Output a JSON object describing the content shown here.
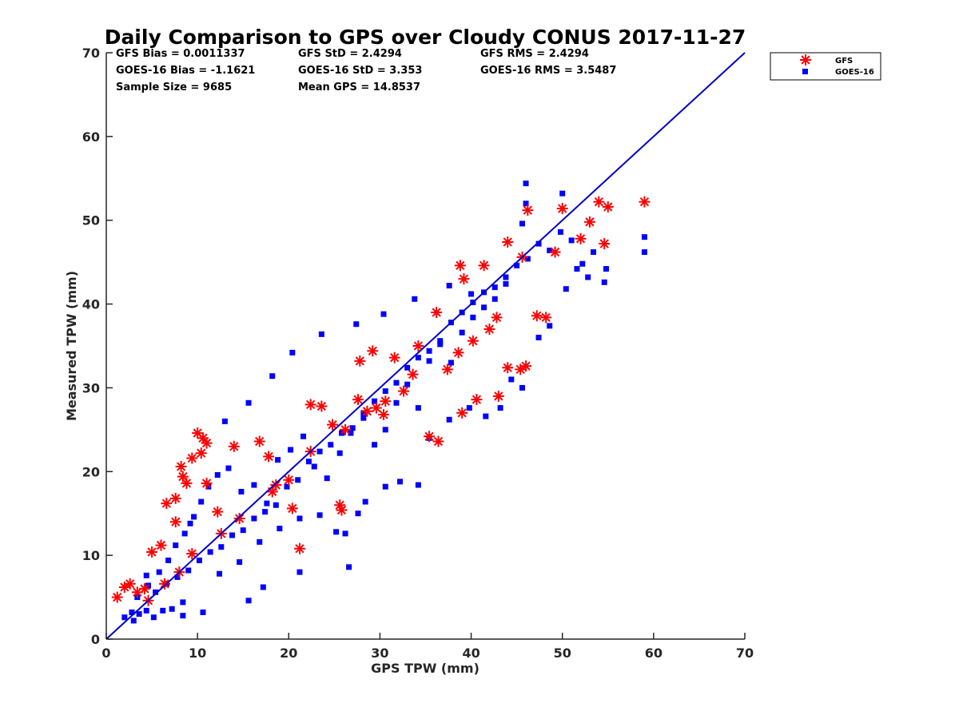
{
  "chart_data": {
    "type": "scatter",
    "title": "Daily Comparison to GPS over Cloudy CONUS 2017-11-27",
    "xlabel": "GPS TPW (mm)",
    "ylabel": "Measured TPW (mm)",
    "xlim": [
      0,
      70
    ],
    "ylim": [
      0,
      70
    ],
    "xticks": [
      "0",
      "10",
      "20",
      "30",
      "40",
      "50",
      "60",
      "70"
    ],
    "yticks": [
      "0",
      "10",
      "20",
      "30",
      "40",
      "50",
      "60",
      "70"
    ],
    "grid": false,
    "legend_position": "outside top-right",
    "stats": [
      [
        "GFS Bias = 0.0011337",
        "GFS StD = 2.4294",
        "GFS RMS = 2.4294"
      ],
      [
        "GOES-16 Bias = -1.1621",
        "GOES-16 StD = 3.353",
        "GOES-16 RMS = 3.5487"
      ],
      [
        "Sample Size = 9685",
        "Mean GPS = 14.8537",
        ""
      ]
    ],
    "reference_line": {
      "from": [
        0,
        0
      ],
      "to": [
        70,
        70
      ],
      "color": "#0000cc"
    },
    "series": [
      {
        "name": "GFS",
        "marker": "asterisk",
        "color": "#ff0000",
        "points": [
          [
            1.2,
            5.0
          ],
          [
            2.0,
            6.2
          ],
          [
            2.6,
            6.6
          ],
          [
            3.4,
            5.6
          ],
          [
            4.2,
            6.0
          ],
          [
            5.0,
            10.4
          ],
          [
            6.0,
            11.2
          ],
          [
            7.6,
            14.0
          ],
          [
            6.6,
            16.2
          ],
          [
            7.6,
            16.8
          ],
          [
            8.2,
            20.6
          ],
          [
            8.4,
            19.4
          ],
          [
            8.8,
            18.6
          ],
          [
            9.4,
            21.6
          ],
          [
            10.0,
            24.6
          ],
          [
            10.6,
            24.0
          ],
          [
            11.0,
            23.4
          ],
          [
            10.4,
            22.2
          ],
          [
            14.0,
            23.0
          ],
          [
            11.0,
            18.6
          ],
          [
            12.2,
            15.2
          ],
          [
            14.6,
            14.4
          ],
          [
            16.8,
            23.6
          ],
          [
            17.8,
            21.8
          ],
          [
            18.6,
            18.4
          ],
          [
            20.0,
            19.0
          ],
          [
            21.2,
            10.8
          ],
          [
            20.4,
            15.6
          ],
          [
            22.4,
            28.0
          ],
          [
            23.6,
            27.8
          ],
          [
            24.8,
            25.6
          ],
          [
            26.2,
            25.0
          ],
          [
            27.6,
            28.6
          ],
          [
            28.6,
            27.2
          ],
          [
            29.6,
            27.6
          ],
          [
            30.4,
            26.8
          ],
          [
            31.6,
            33.6
          ],
          [
            29.2,
            34.4
          ],
          [
            27.8,
            33.2
          ],
          [
            25.6,
            16.0
          ],
          [
            25.8,
            15.4
          ],
          [
            32.6,
            29.6
          ],
          [
            33.6,
            31.6
          ],
          [
            35.4,
            24.2
          ],
          [
            36.4,
            23.6
          ],
          [
            37.4,
            32.2
          ],
          [
            38.6,
            34.2
          ],
          [
            38.8,
            44.6
          ],
          [
            39.2,
            43.0
          ],
          [
            40.2,
            35.6
          ],
          [
            41.4,
            44.6
          ],
          [
            42.0,
            37.0
          ],
          [
            43.0,
            29.0
          ],
          [
            44.0,
            32.4
          ],
          [
            45.4,
            32.2
          ],
          [
            46.0,
            32.6
          ],
          [
            45.6,
            45.6
          ],
          [
            46.2,
            51.2
          ],
          [
            47.2,
            38.6
          ],
          [
            48.2,
            38.4
          ],
          [
            49.2,
            46.2
          ],
          [
            50.0,
            51.4
          ],
          [
            52.0,
            47.8
          ],
          [
            53.0,
            49.8
          ],
          [
            54.0,
            52.2
          ],
          [
            55.0,
            51.6
          ],
          [
            54.6,
            47.2
          ],
          [
            59.0,
            52.2
          ],
          [
            39.0,
            27.0
          ],
          [
            40.6,
            28.6
          ],
          [
            44.0,
            47.4
          ],
          [
            42.8,
            38.4
          ],
          [
            36.2,
            39.0
          ],
          [
            34.2,
            35.0
          ],
          [
            30.6,
            28.4
          ],
          [
            22.4,
            22.4
          ],
          [
            18.2,
            17.6
          ],
          [
            12.6,
            12.6
          ],
          [
            9.4,
            10.2
          ],
          [
            8.0,
            8.0
          ],
          [
            6.4,
            6.6
          ],
          [
            4.6,
            4.6
          ]
        ]
      },
      {
        "name": "GOES-16",
        "marker": "square",
        "color": "#0000ff",
        "points": [
          [
            2.0,
            2.6
          ],
          [
            2.8,
            3.2
          ],
          [
            3.6,
            3.0
          ],
          [
            4.4,
            3.4
          ],
          [
            5.2,
            2.6
          ],
          [
            6.2,
            3.4
          ],
          [
            7.2,
            3.6
          ],
          [
            8.4,
            4.4
          ],
          [
            3.4,
            5.0
          ],
          [
            4.6,
            6.4
          ],
          [
            5.8,
            8.0
          ],
          [
            6.8,
            9.4
          ],
          [
            7.6,
            11.2
          ],
          [
            8.6,
            12.6
          ],
          [
            9.6,
            14.6
          ],
          [
            10.4,
            16.4
          ],
          [
            11.2,
            18.2
          ],
          [
            12.2,
            19.6
          ],
          [
            13.4,
            20.4
          ],
          [
            14.8,
            17.6
          ],
          [
            16.2,
            18.4
          ],
          [
            17.6,
            16.2
          ],
          [
            18.8,
            21.4
          ],
          [
            20.2,
            22.6
          ],
          [
            21.6,
            24.2
          ],
          [
            22.8,
            20.6
          ],
          [
            24.2,
            19.2
          ],
          [
            25.6,
            22.2
          ],
          [
            26.8,
            24.6
          ],
          [
            28.2,
            26.4
          ],
          [
            29.4,
            23.2
          ],
          [
            30.6,
            25.0
          ],
          [
            31.8,
            28.2
          ],
          [
            33.0,
            30.4
          ],
          [
            34.2,
            27.6
          ],
          [
            35.4,
            33.2
          ],
          [
            36.6,
            35.6
          ],
          [
            37.8,
            33.0
          ],
          [
            39.0,
            36.6
          ],
          [
            40.2,
            38.4
          ],
          [
            41.4,
            39.6
          ],
          [
            42.6,
            40.6
          ],
          [
            43.8,
            42.4
          ],
          [
            45.0,
            44.6
          ],
          [
            46.2,
            45.4
          ],
          [
            47.4,
            47.2
          ],
          [
            48.6,
            46.4
          ],
          [
            49.8,
            48.6
          ],
          [
            51.0,
            47.6
          ],
          [
            52.2,
            44.8
          ],
          [
            53.4,
            46.2
          ],
          [
            54.6,
            42.6
          ],
          [
            54.8,
            44.2
          ],
          [
            59.0,
            48.0
          ],
          [
            59.0,
            46.2
          ],
          [
            46.0,
            54.4
          ],
          [
            50.0,
            53.2
          ],
          [
            46.0,
            52.0
          ],
          [
            45.6,
            49.6
          ],
          [
            40.0,
            41.2
          ],
          [
            37.6,
            42.2
          ],
          [
            33.8,
            40.6
          ],
          [
            30.4,
            38.8
          ],
          [
            27.4,
            37.6
          ],
          [
            23.6,
            36.4
          ],
          [
            20.4,
            34.2
          ],
          [
            18.2,
            31.4
          ],
          [
            15.6,
            28.2
          ],
          [
            13.0,
            26.0
          ],
          [
            9.2,
            13.8
          ],
          [
            12.4,
            7.8
          ],
          [
            14.6,
            9.2
          ],
          [
            16.8,
            11.6
          ],
          [
            19.0,
            13.2
          ],
          [
            21.2,
            14.4
          ],
          [
            23.4,
            14.8
          ],
          [
            25.2,
            12.8
          ],
          [
            26.2,
            12.6
          ],
          [
            28.4,
            16.4
          ],
          [
            30.6,
            18.2
          ],
          [
            32.2,
            18.8
          ],
          [
            34.2,
            18.4
          ],
          [
            35.4,
            24.0
          ],
          [
            37.6,
            26.2
          ],
          [
            39.8,
            27.6
          ],
          [
            41.6,
            26.6
          ],
          [
            43.2,
            27.6
          ],
          [
            44.4,
            31.0
          ],
          [
            45.6,
            30.0
          ],
          [
            47.4,
            36.0
          ],
          [
            48.6,
            37.4
          ],
          [
            50.4,
            41.8
          ],
          [
            51.6,
            44.2
          ],
          [
            52.8,
            43.2
          ],
          [
            4.4,
            7.6
          ],
          [
            5.4,
            5.6
          ],
          [
            6.6,
            6.6
          ],
          [
            7.8,
            7.4
          ],
          [
            9.0,
            8.2
          ],
          [
            10.2,
            9.4
          ],
          [
            11.4,
            10.4
          ],
          [
            12.6,
            11.0
          ],
          [
            13.8,
            12.4
          ],
          [
            15.0,
            13.0
          ],
          [
            16.2,
            14.4
          ],
          [
            17.4,
            15.2
          ],
          [
            18.6,
            16.0
          ],
          [
            19.8,
            18.2
          ],
          [
            21.0,
            19.0
          ],
          [
            22.2,
            21.2
          ],
          [
            23.4,
            22.4
          ],
          [
            24.6,
            23.2
          ],
          [
            25.8,
            24.6
          ],
          [
            27.0,
            25.2
          ],
          [
            28.2,
            27.0
          ],
          [
            29.4,
            28.4
          ],
          [
            30.6,
            29.6
          ],
          [
            31.8,
            30.6
          ],
          [
            33.0,
            32.4
          ],
          [
            34.2,
            33.6
          ],
          [
            35.4,
            34.4
          ],
          [
            36.6,
            35.2
          ],
          [
            37.8,
            37.8
          ],
          [
            39.0,
            39.0
          ],
          [
            40.2,
            40.2
          ],
          [
            41.4,
            41.4
          ],
          [
            42.6,
            42.0
          ],
          [
            43.8,
            43.2
          ],
          [
            15.6,
            4.6
          ],
          [
            17.2,
            6.2
          ],
          [
            21.2,
            8.0
          ],
          [
            26.6,
            8.6
          ],
          [
            27.6,
            15.0
          ],
          [
            3.0,
            2.2
          ],
          [
            8.4,
            2.8
          ],
          [
            10.6,
            3.2
          ]
        ]
      }
    ]
  }
}
